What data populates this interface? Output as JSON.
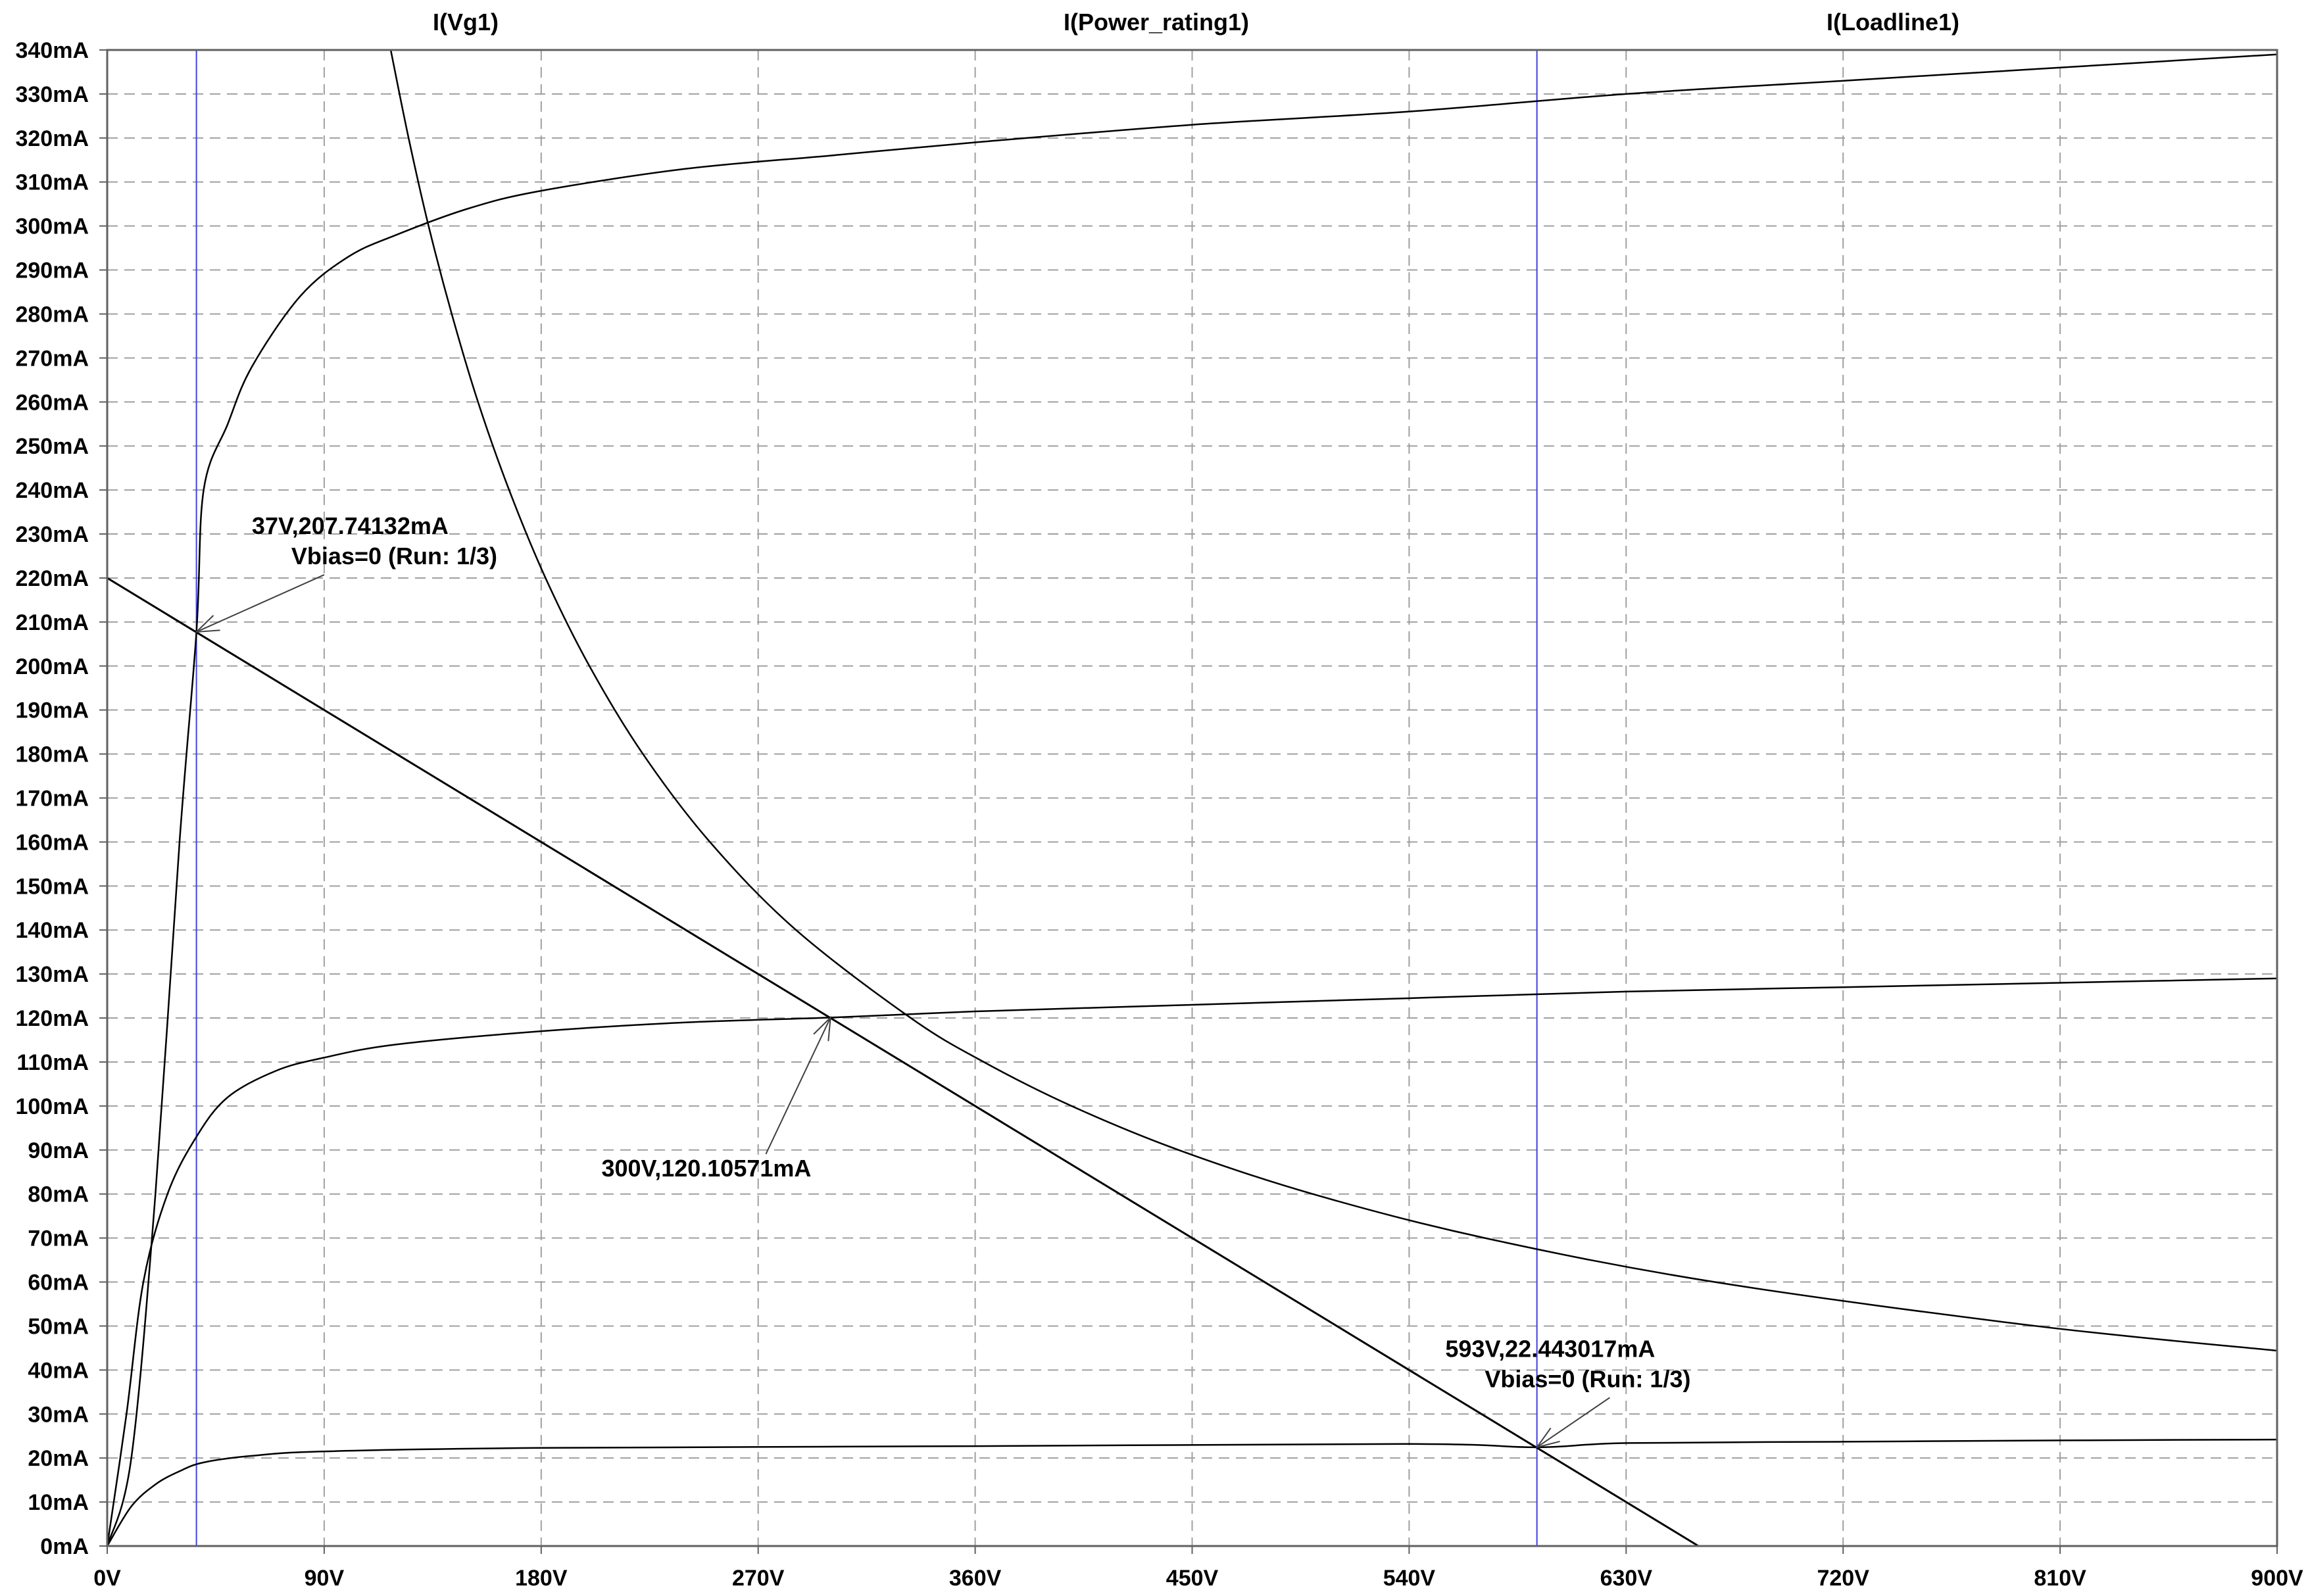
{
  "chart_data": {
    "type": "line",
    "title": "",
    "xlabel": "",
    "ylabel": "",
    "xlim": [
      0,
      900
    ],
    "ylim": [
      0,
      340
    ],
    "x_unit": "V",
    "y_unit": "mA",
    "grid": true,
    "x_ticks": [
      0,
      90,
      180,
      270,
      360,
      450,
      540,
      630,
      720,
      810,
      900
    ],
    "x_tick_labels": [
      "0V",
      "90V",
      "180V",
      "270V",
      "360V",
      "450V",
      "540V",
      "630V",
      "720V",
      "810V",
      "900V"
    ],
    "y_ticks": [
      0,
      10,
      20,
      30,
      40,
      50,
      60,
      70,
      80,
      90,
      100,
      110,
      120,
      130,
      140,
      150,
      160,
      170,
      180,
      190,
      200,
      210,
      220,
      230,
      240,
      250,
      260,
      270,
      280,
      290,
      300,
      310,
      320,
      330,
      340
    ],
    "y_tick_labels": [
      "0mA",
      "10mA",
      "20mA",
      "30mA",
      "40mA",
      "50mA",
      "60mA",
      "70mA",
      "80mA",
      "90mA",
      "100mA",
      "110mA",
      "120mA",
      "130mA",
      "140mA",
      "150mA",
      "160mA",
      "170mA",
      "180mA",
      "190mA",
      "200mA",
      "210mA",
      "220mA",
      "230mA",
      "240mA",
      "250mA",
      "260mA",
      "270mA",
      "280mA",
      "290mA",
      "300mA",
      "310mA",
      "320mA",
      "330mA",
      "340mA"
    ],
    "legend": [
      "I(Vg1)",
      "I(Power_rating1)",
      "I(Loadline1)"
    ],
    "series": [
      {
        "name": "I(Vg1)",
        "color": "#000000",
        "points": [
          [
            0,
            0
          ],
          [
            10,
            20
          ],
          [
            20,
            80
          ],
          [
            30,
            160
          ],
          [
            37,
            207.7
          ],
          [
            40,
            240
          ],
          [
            50,
            255
          ],
          [
            60,
            268
          ],
          [
            80,
            284
          ],
          [
            100,
            293
          ],
          [
            120,
            298
          ],
          [
            150,
            304
          ],
          [
            180,
            308
          ],
          [
            240,
            313
          ],
          [
            300,
            316
          ],
          [
            360,
            319
          ],
          [
            450,
            323
          ],
          [
            540,
            326
          ],
          [
            630,
            330
          ],
          [
            720,
            333
          ],
          [
            810,
            336
          ],
          [
            900,
            339
          ]
        ]
      },
      {
        "name": "I(Vg1)",
        "color": "#000000",
        "points": [
          [
            0,
            0
          ],
          [
            8,
            30
          ],
          [
            15,
            60
          ],
          [
            25,
            80
          ],
          [
            37,
            93
          ],
          [
            50,
            102
          ],
          [
            70,
            108
          ],
          [
            90,
            111
          ],
          [
            120,
            114
          ],
          [
            180,
            117
          ],
          [
            240,
            119
          ],
          [
            300,
            120.1
          ],
          [
            360,
            121.5
          ],
          [
            450,
            123
          ],
          [
            540,
            124.5
          ],
          [
            630,
            126
          ],
          [
            720,
            127
          ],
          [
            810,
            128
          ],
          [
            900,
            129
          ]
        ]
      },
      {
        "name": "I(Vg1)",
        "color": "#000000",
        "points": [
          [
            0,
            0
          ],
          [
            10,
            9
          ],
          [
            20,
            14
          ],
          [
            30,
            17
          ],
          [
            40,
            19
          ],
          [
            60,
            20.5
          ],
          [
            90,
            21.5
          ],
          [
            180,
            22.3
          ],
          [
            360,
            22.7
          ],
          [
            540,
            23.2
          ],
          [
            593,
            22.44
          ],
          [
            630,
            23.4
          ],
          [
            720,
            23.7
          ],
          [
            810,
            24
          ],
          [
            900,
            24.2
          ]
        ]
      },
      {
        "name": "I(Power_rating1)",
        "color": "#000000",
        "points": [
          [
            117.6,
            340
          ],
          [
            125,
            320
          ],
          [
            133.3,
            300
          ],
          [
            142.9,
            280
          ],
          [
            153.8,
            260
          ],
          [
            166.7,
            240
          ],
          [
            181.8,
            220
          ],
          [
            200,
            200
          ],
          [
            222.2,
            180
          ],
          [
            250,
            160
          ],
          [
            285.7,
            140
          ],
          [
            333.3,
            120
          ],
          [
            363.6,
            110
          ],
          [
            400,
            100
          ],
          [
            444.4,
            90
          ],
          [
            500,
            80
          ],
          [
            571.4,
            70
          ],
          [
            666.7,
            60
          ],
          [
            800,
            50
          ],
          [
            900,
            44.4
          ]
        ]
      },
      {
        "name": "I(Loadline1)",
        "color": "#000000",
        "points": [
          [
            0,
            220
          ],
          [
            660,
            0
          ]
        ]
      }
    ],
    "cursors": [
      {
        "x": 37,
        "color": "#4040e0"
      },
      {
        "x": 593,
        "color": "#4040e0"
      }
    ],
    "annotations": [
      {
        "lines": [
          "37V,207.74132mA",
          "Vbias=0  (Run: 1/3)"
        ],
        "point": [
          37,
          207.74132
        ],
        "text_at": [
          60,
          230
        ],
        "align": "left"
      },
      {
        "lines": [
          "300V,120.10571mA"
        ],
        "point": [
          300,
          120.10571
        ],
        "text_at": [
          205,
          84
        ],
        "align": "left"
      },
      {
        "lines": [
          "593V,22.443017mA",
          "Vbias=0  (Run: 1/3)"
        ],
        "point": [
          593,
          22.443017
        ],
        "text_at": [
          555,
          43
        ],
        "align": "left"
      }
    ]
  }
}
